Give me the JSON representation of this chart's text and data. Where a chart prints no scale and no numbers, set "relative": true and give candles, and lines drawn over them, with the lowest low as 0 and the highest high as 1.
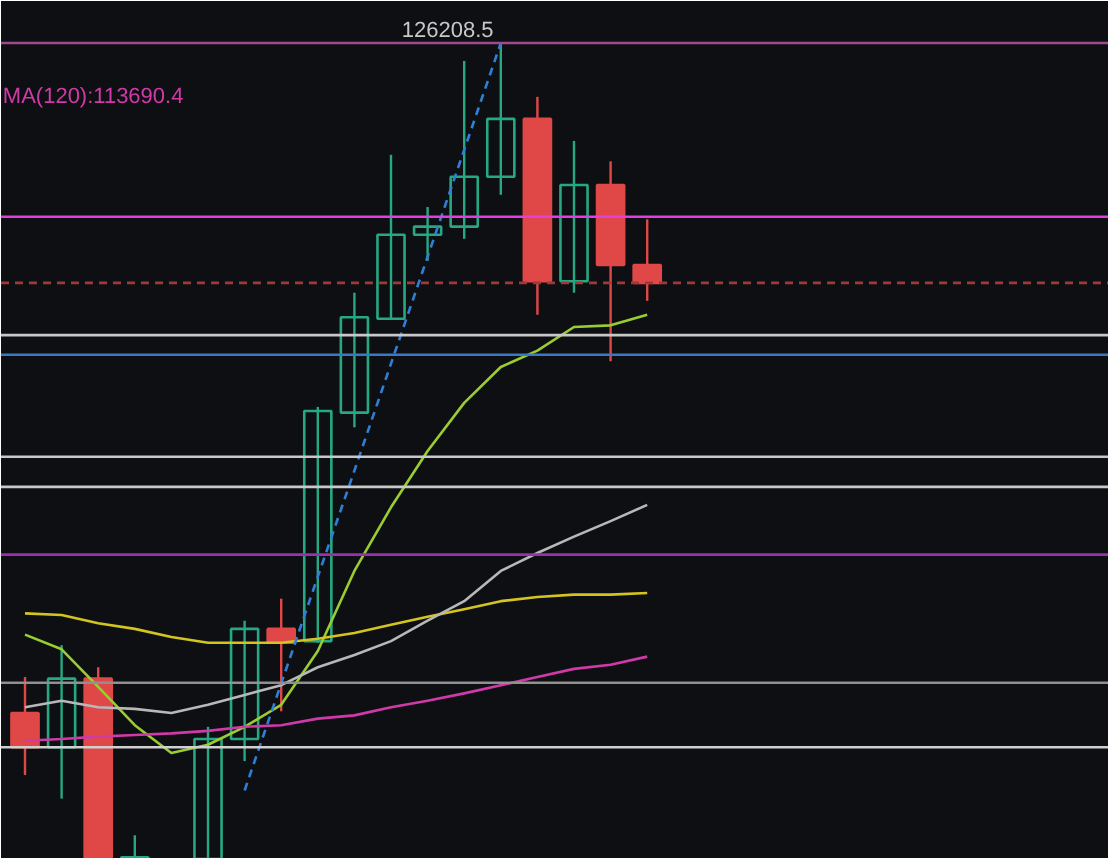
{
  "chart_data": {
    "type": "candlestick",
    "relative": true,
    "categories": [
      null,
      null,
      null,
      null,
      null,
      null,
      null,
      null,
      null,
      null,
      null,
      null,
      null,
      null,
      null,
      null,
      null,
      null
    ],
    "ohlc": [
      [
        0.179,
        0.223,
        0.103,
        0.137
      ],
      [
        0.137,
        0.262,
        0.074,
        0.221
      ],
      [
        0.221,
        0.235,
        0,
        0
      ],
      [
        0,
        0.029,
        0,
        0.002
      ],
      null,
      [
        0,
        0.162,
        0,
        0.147
      ],
      [
        0.147,
        0.292,
        0.12,
        0.282
      ],
      [
        0.282,
        0.319,
        0.181,
        0.265
      ],
      [
        0.267,
        0.554,
        0.265,
        0.549
      ],
      [
        0.547,
        0.694,
        0.529,
        0.664
      ],
      [
        0.662,
        0.863,
        0.662,
        0.765
      ],
      [
        0.765,
        0.799,
        0.733,
        0.775
      ],
      [
        0.775,
        0.978,
        0.76,
        0.836
      ],
      [
        0.836,
        1,
        0.814,
        0.907
      ],
      [
        0.907,
        0.934,
        0.667,
        0.708
      ],
      [
        0.708,
        0.88,
        0.694,
        0.826
      ],
      [
        0.826,
        0.855,
        0.61,
        0.728
      ],
      [
        0.728,
        0.784,
        0.684,
        0.706
      ]
    ],
    "colors": [
      "#e04848",
      "#26a882",
      "#e04848",
      "#26a882",
      null,
      "#26a882",
      "#26a882",
      "#e04848",
      "#26a882",
      "#26a882",
      "#26a882",
      "#26a882",
      "#26a882",
      "#26a882",
      "#e04848",
      "#26a882",
      "#e04848",
      "#e04848"
    ],
    "series": [
      {
        "type": "line",
        "color": "#9acd32",
        "values": [
          0.275,
          0.257,
          0.211,
          0.164,
          0.13,
          0.14,
          0.162,
          0.189,
          0.255,
          0.353,
          0.431,
          0.5,
          0.559,
          0.603,
          0.623,
          0.652,
          0.654,
          0.667
        ]
      },
      {
        "type": "line",
        "color": "#d4c420",
        "values": [
          0.301,
          0.299,
          0.289,
          0.282,
          0.272,
          0.265,
          0.265,
          0.265,
          0.27,
          0.277,
          0.287,
          0.297,
          0.306,
          0.316,
          0.321,
          0.324,
          0.324,
          0.326
        ]
      },
      {
        "type": "line",
        "color": "#b8b8b8",
        "values": [
          0.186,
          0.194,
          0.186,
          0.184,
          0.179,
          0.189,
          0.201,
          0.213,
          0.235,
          0.25,
          0.267,
          0.292,
          0.316,
          0.353,
          0.375,
          0.395,
          0.414,
          0.434
        ]
      },
      {
        "type": "line",
        "name": "MA(120):113690.4",
        "color": "#d03aa8",
        "values": [
          0.145,
          0.147,
          0.15,
          0.152,
          0.154,
          0.157,
          0.162,
          0.164,
          0.172,
          0.176,
          0.186,
          0.194,
          0.203,
          0.213,
          0.223,
          0.233,
          0.238,
          0.248
        ]
      },
      {
        "type": "line",
        "color": "#2f7fd6",
        "line_style": "dashed",
        "values": [
          null,
          null,
          null,
          null,
          null,
          null,
          0.084,
          0.215,
          0.346,
          0.476,
          0.607,
          0.738,
          0.869,
          1,
          null,
          null,
          null,
          null
        ]
      }
    ],
    "ref_lines": [
      {
        "axis": "y",
        "value": 1,
        "color": "#a04890"
      },
      {
        "axis": "y",
        "value": 0.787,
        "color": "#e040e0"
      },
      {
        "axis": "y",
        "value": 0.706,
        "color": "#a03838",
        "line_style": "dashed"
      },
      {
        "axis": "y",
        "value": 0.642,
        "color": "#c8c8c8"
      },
      {
        "axis": "y",
        "value": 0.618,
        "color": "#3a78c8"
      },
      {
        "axis": "y",
        "value": 0.493,
        "color": "#c8c8c8"
      },
      {
        "axis": "y",
        "value": 0.456,
        "color": "#c8c8c8"
      },
      {
        "axis": "y",
        "value": 0.373,
        "color": "#9a30b0"
      },
      {
        "axis": "y",
        "value": 0.216,
        "color": "#909090"
      },
      {
        "axis": "y",
        "value": 0.137,
        "color": "#d0d0d0"
      }
    ],
    "annotations": [
      {
        "text": "126208.5",
        "y": 1
      }
    ],
    "legend": "top left"
  }
}
